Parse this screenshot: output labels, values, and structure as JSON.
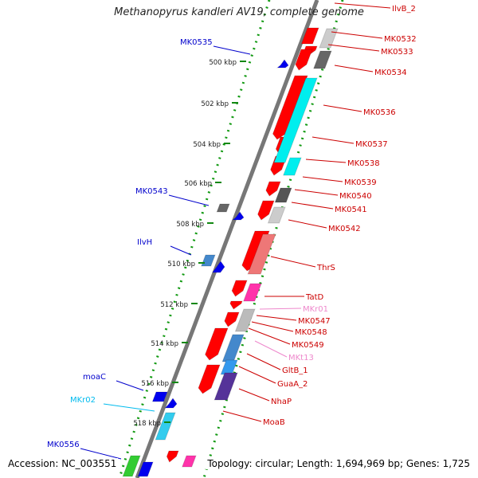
{
  "title": "Methanopyrus kandleri AV19, complete genome",
  "footer": {
    "accession": "Accession: NC_003551",
    "topology": "Topology: circular; Length: 1,694,969 bp; Genes: 1,725"
  },
  "kbp_ticks": [
    {
      "label": "500 kbp",
      "kbp": 500
    },
    {
      "label": "502 kbp",
      "kbp": 502
    },
    {
      "label": "504 kbp",
      "kbp": 504
    },
    {
      "label": "506 kbp",
      "kbp": 506
    },
    {
      "label": "508 kbp",
      "kbp": 508
    },
    {
      "label": "510 kbp",
      "kbp": 510
    },
    {
      "label": "512 kbp",
      "kbp": 512
    },
    {
      "label": "514 kbp",
      "kbp": 514
    },
    {
      "label": "516 kbp",
      "kbp": 516
    },
    {
      "label": "518 kbp",
      "kbp": 518
    }
  ],
  "right_labels": [
    {
      "text": "IlvB_2",
      "color": "#cc0000"
    },
    {
      "text": "MK0532",
      "color": "#cc0000"
    },
    {
      "text": "MK0533",
      "color": "#cc0000"
    },
    {
      "text": "MK0534",
      "color": "#cc0000"
    },
    {
      "text": "MK0536",
      "color": "#cc0000"
    },
    {
      "text": "MK0537",
      "color": "#cc0000"
    },
    {
      "text": "MK0538",
      "color": "#cc0000"
    },
    {
      "text": "MK0539",
      "color": "#cc0000"
    },
    {
      "text": "MK0540",
      "color": "#cc0000"
    },
    {
      "text": "MK0541",
      "color": "#cc0000"
    },
    {
      "text": "MK0542",
      "color": "#cc0000"
    },
    {
      "text": "ThrS",
      "color": "#cc0000"
    },
    {
      "text": "TatD",
      "color": "#cc0000"
    },
    {
      "text": "MKr01",
      "color": "#ee88cc"
    },
    {
      "text": "MK0547",
      "color": "#cc0000"
    },
    {
      "text": "MK0548",
      "color": "#cc0000"
    },
    {
      "text": "MK0549",
      "color": "#cc0000"
    },
    {
      "text": "MKt13",
      "color": "#ee88cc"
    },
    {
      "text": "GltB_1",
      "color": "#cc0000"
    },
    {
      "text": "GuaA_2",
      "color": "#cc0000"
    },
    {
      "text": "NhaP",
      "color": "#cc0000"
    },
    {
      "text": "MoaB",
      "color": "#cc0000"
    }
  ],
  "left_labels": [
    {
      "text": "MK0535",
      "color": "#0000cc"
    },
    {
      "text": "MK0543",
      "color": "#0000cc"
    },
    {
      "text": "IlvH",
      "color": "#0000cc"
    },
    {
      "text": "moaC",
      "color": "#0000cc"
    },
    {
      "text": "MKr02",
      "color": "#00bbee"
    },
    {
      "text": "MK0556",
      "color": "#0000cc"
    }
  ],
  "colors": {
    "forward_cds": "#ff0000",
    "reverse_cds": "#0000ee",
    "rrna": "#00bbee",
    "trna": "#ff44aa",
    "backbone": "#888888",
    "tick_dots": "#119911"
  }
}
